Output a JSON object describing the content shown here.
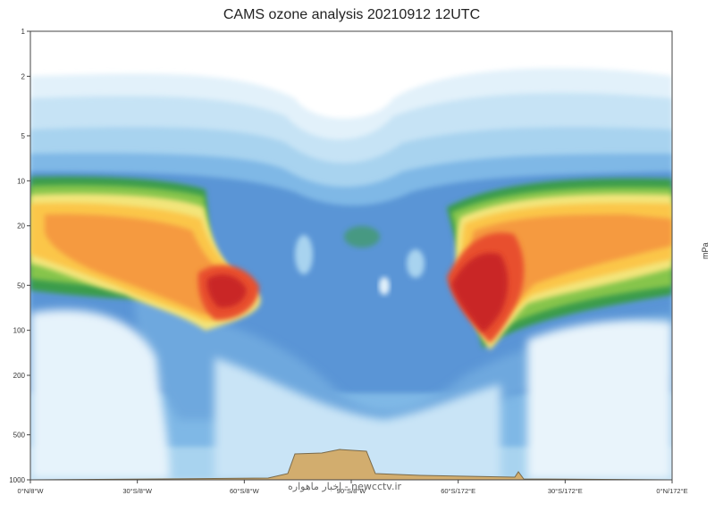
{
  "chart_data": {
    "type": "heatmap",
    "title": "CAMS ozone analysis 20210912 12UTC",
    "unit_label": "mPa",
    "y_scale": "log-pressure",
    "y_ticks": [
      "1",
      "2",
      "5",
      "10",
      "20",
      "50",
      "100",
      "200",
      "500",
      "1000"
    ],
    "y_tick_values": [
      1,
      2,
      5,
      10,
      20,
      50,
      100,
      200,
      500,
      1000
    ],
    "x_ticks": [
      "0°N/8°W",
      "30°S/8°W",
      "60°S/8°W",
      "90°S/8°W",
      "60°S/172°E",
      "30°S/172°E",
      "0°N/172°E"
    ],
    "ylim": [
      1000,
      1
    ],
    "grid": false,
    "colors": [
      "#eef7fc",
      "#d6ecf8",
      "#b4daf2",
      "#8fc3ea",
      "#6aa6dc",
      "#4a88cc",
      "#2e9a4a",
      "#7cc44a",
      "#e9e87a",
      "#fcd24e",
      "#f8a844",
      "#f47c3c",
      "#e24a2f",
      "#c42424",
      "#a31a1a"
    ]
  },
  "watermark": "اخبار ماهواره - newcctv.ir"
}
